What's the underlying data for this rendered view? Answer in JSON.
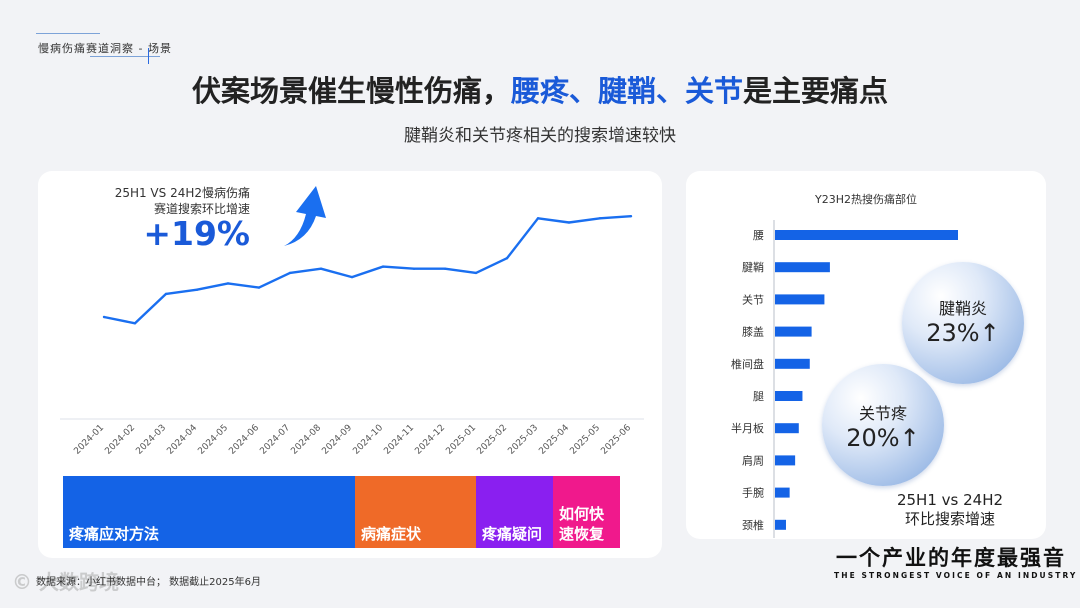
{
  "header": {
    "breadcrumb": "慢病伤痛赛道洞察 - 场景",
    "title_part1": "伏案场景催生慢性伤痛，",
    "title_highlight": "腰疼、腱鞘、关节",
    "title_part2": "是主要痛点",
    "subtitle": "腱鞘炎和关节疼相关的搜索增速较快"
  },
  "left_panel": {
    "growth_label_line1": "25H1 VS 24H2慢病伤痛",
    "growth_label_line2": "赛道搜索环比增速",
    "growth_value": "+19%"
  },
  "category_bar": [
    {
      "label": "疼痛应对方法",
      "color": "#1463e6"
    },
    {
      "label": "病痛症状",
      "color": "#ef6a28"
    },
    {
      "label": "疼痛疑问",
      "color": "#8a1ff0"
    },
    {
      "label": "如何快速恢复",
      "color": "#f0198c"
    }
  ],
  "right_panel": {
    "bubbles": [
      {
        "name": "腱鞘炎",
        "value": "23%↑"
      },
      {
        "name": "关节疼",
        "value": "20%↑"
      }
    ],
    "compare_note_line1": "25H1 vs 24H2",
    "compare_note_line2": "环比搜索增速"
  },
  "chart_data": [
    {
      "type": "line",
      "title": "",
      "x": [
        "2024-01",
        "2024-02",
        "2024-03",
        "2024-04",
        "2024-05",
        "2024-06",
        "2024-07",
        "2024-08",
        "2024-09",
        "2024-10",
        "2024-11",
        "2024-12",
        "2025-01",
        "2025-02",
        "2025-03",
        "2025-04",
        "2025-05",
        "2025-06"
      ],
      "series": [
        {
          "values": [
            30,
            27,
            41,
            43,
            46,
            44,
            51,
            53,
            49,
            54,
            53,
            53,
            51,
            58,
            77,
            75,
            77,
            78
          ]
        }
      ],
      "ylim": [
        0,
        100
      ],
      "color": "#1a6ff0",
      "grid": false
    },
    {
      "type": "bar",
      "orientation": "horizontal",
      "title": "Y23H2热搜伤痛部位",
      "categories": [
        "腰",
        "腱鞘",
        "关节",
        "膝盖",
        "椎间盘",
        "腿",
        "半月板",
        "肩周",
        "手腕",
        "颈椎"
      ],
      "values": [
        100,
        30,
        27,
        20,
        19,
        15,
        13,
        11,
        8,
        6
      ],
      "xlim": [
        0,
        100
      ],
      "color": "#1463e6"
    }
  ],
  "footer": {
    "source": "数据来源：小红书数据中台；  数据截止2025年6月",
    "watermark": "© 大数跨境",
    "slogan_cn": "一个产业的年度最强音",
    "slogan_en": "THE STRONGEST VOICE OF AN INDUSTRY"
  }
}
